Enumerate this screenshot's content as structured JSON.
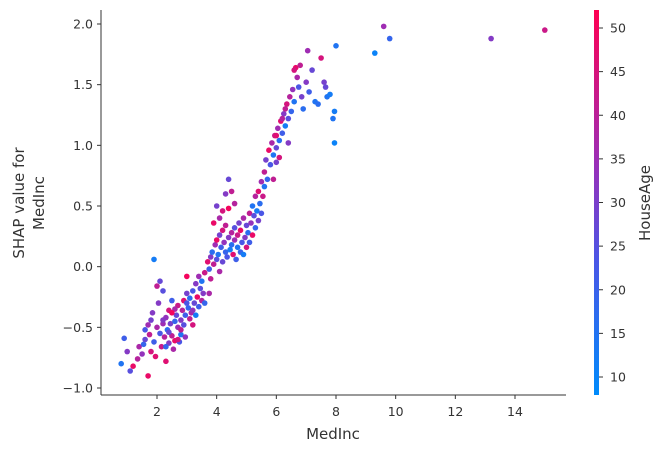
{
  "chart_data": {
    "type": "scatter",
    "title": "",
    "xlabel": "MedInc",
    "ylabel": "SHAP value for\nMedInc",
    "ylabel_lines": [
      "SHAP value for",
      "MedInc"
    ],
    "xlim": [
      0.2,
      15.8
    ],
    "ylim": [
      -1.1,
      2.12
    ],
    "x_ticks": [
      2,
      4,
      6,
      8,
      10,
      12,
      14
    ],
    "x_tick_labels": [
      "2",
      "4",
      "6",
      "8",
      "10",
      "12",
      "14"
    ],
    "y_ticks": [
      -1.0,
      -0.5,
      0.0,
      0.5,
      1.0,
      1.5,
      2.0
    ],
    "y_tick_labels": [
      "−1.0",
      "−0.5",
      "0.0",
      "0.5",
      "1.0",
      "1.5",
      "2.0"
    ],
    "grid": false,
    "colorbar": {
      "label": "HouseAge",
      "range": [
        8,
        52
      ],
      "ticks": [
        10,
        15,
        20,
        25,
        30,
        35,
        40,
        45,
        50
      ],
      "tick_labels": [
        "10",
        "15",
        "20",
        "25",
        "30",
        "35",
        "40",
        "45",
        "50"
      ],
      "colormap": [
        "#008bfb",
        "#5b4fe0",
        "#9f2fb4",
        "#ff0052"
      ],
      "low_color": "#008bfb",
      "high_color": "#ff0052"
    },
    "points": [
      [
        0.8,
        -0.8,
        14
      ],
      [
        0.9,
        -0.59,
        20
      ],
      [
        1.0,
        -0.7,
        30
      ],
      [
        1.1,
        -0.86,
        24
      ],
      [
        1.2,
        -0.82,
        48
      ],
      [
        1.35,
        -0.76,
        38
      ],
      [
        1.4,
        -0.66,
        36
      ],
      [
        1.5,
        -0.72,
        32
      ],
      [
        1.55,
        -0.64,
        18
      ],
      [
        1.6,
        -0.6,
        26
      ],
      [
        1.6,
        -0.52,
        22
      ],
      [
        1.7,
        -0.9,
        48
      ],
      [
        1.7,
        -0.48,
        34
      ],
      [
        1.75,
        -0.56,
        40
      ],
      [
        1.8,
        -0.44,
        28
      ],
      [
        1.8,
        -0.7,
        44
      ],
      [
        1.85,
        -0.38,
        30
      ],
      [
        1.9,
        -0.62,
        20
      ],
      [
        1.9,
        0.06,
        12
      ],
      [
        1.95,
        -0.74,
        46
      ],
      [
        2.0,
        -0.16,
        40
      ],
      [
        2.0,
        -0.5,
        36
      ],
      [
        2.05,
        -0.3,
        30
      ],
      [
        2.1,
        -0.55,
        22
      ],
      [
        2.1,
        -0.12,
        26
      ],
      [
        2.15,
        -0.66,
        42
      ],
      [
        2.2,
        -0.47,
        34
      ],
      [
        2.2,
        -0.2,
        24
      ],
      [
        2.25,
        -0.58,
        38
      ],
      [
        2.3,
        -0.42,
        32
      ],
      [
        2.3,
        -0.78,
        46
      ],
      [
        2.35,
        -0.52,
        16
      ],
      [
        2.4,
        -0.63,
        30
      ],
      [
        2.4,
        -0.36,
        44
      ],
      [
        2.45,
        -0.47,
        28
      ],
      [
        2.5,
        -0.57,
        40
      ],
      [
        2.5,
        -0.28,
        20
      ],
      [
        2.55,
        -0.68,
        36
      ],
      [
        2.6,
        -0.45,
        18
      ],
      [
        2.6,
        -0.61,
        48
      ],
      [
        2.65,
        -0.4,
        26
      ],
      [
        2.7,
        -0.5,
        34
      ],
      [
        2.7,
        -0.32,
        42
      ],
      [
        2.75,
        -0.62,
        22
      ],
      [
        2.8,
        -0.44,
        30
      ],
      [
        2.8,
        -0.56,
        14
      ],
      [
        2.85,
        -0.36,
        38
      ],
      [
        2.9,
        -0.48,
        24
      ],
      [
        2.9,
        -0.28,
        46
      ],
      [
        2.95,
        -0.4,
        20
      ],
      [
        2.95,
        -0.58,
        32
      ],
      [
        3.0,
        -0.22,
        28
      ],
      [
        3.0,
        -0.08,
        50
      ],
      [
        3.05,
        -0.34,
        18
      ],
      [
        3.1,
        -0.43,
        40
      ],
      [
        3.1,
        -0.26,
        16
      ],
      [
        3.15,
        -0.38,
        36
      ],
      [
        3.2,
        -0.2,
        22
      ],
      [
        3.2,
        -0.48,
        44
      ],
      [
        3.25,
        -0.3,
        26
      ],
      [
        3.3,
        -0.14,
        30
      ],
      [
        3.3,
        -0.4,
        12
      ],
      [
        3.35,
        -0.25,
        48
      ],
      [
        3.4,
        -0.33,
        20
      ],
      [
        3.4,
        -0.08,
        34
      ],
      [
        3.45,
        -0.18,
        24
      ],
      [
        3.5,
        -0.28,
        38
      ],
      [
        3.5,
        -0.12,
        14
      ],
      [
        3.55,
        -0.22,
        30
      ],
      [
        3.6,
        -0.3,
        18
      ],
      [
        3.6,
        -0.05,
        42
      ],
      [
        2.2,
        -0.44,
        30
      ],
      [
        2.4,
        -0.54,
        26
      ],
      [
        2.6,
        -0.35,
        36
      ],
      [
        2.8,
        -0.52,
        40
      ],
      [
        3.0,
        -0.3,
        22
      ],
      [
        3.2,
        -0.36,
        32
      ],
      [
        2.3,
        -0.66,
        18
      ],
      [
        2.7,
        -0.6,
        44
      ],
      [
        2.5,
        -0.38,
        50
      ],
      [
        3.7,
        0.04,
        46
      ],
      [
        3.75,
        -0.02,
        20
      ],
      [
        3.8,
        0.08,
        30
      ],
      [
        3.85,
        0.12,
        16
      ],
      [
        3.9,
        0.02,
        40
      ],
      [
        3.95,
        0.18,
        34
      ],
      [
        4.0,
        0.06,
        24
      ],
      [
        4.0,
        0.22,
        48
      ],
      [
        4.05,
        0.1,
        14
      ],
      [
        4.1,
        0.26,
        28
      ],
      [
        4.1,
        -0.04,
        36
      ],
      [
        4.15,
        0.16,
        20
      ],
      [
        4.2,
        0.3,
        44
      ],
      [
        4.2,
        0.04,
        26
      ],
      [
        4.25,
        0.2,
        32
      ],
      [
        4.3,
        0.12,
        18
      ],
      [
        4.3,
        0.34,
        40
      ],
      [
        4.35,
        0.08,
        22
      ],
      [
        4.4,
        0.24,
        30
      ],
      [
        4.4,
        0.48,
        50
      ],
      [
        4.45,
        0.14,
        12
      ],
      [
        4.5,
        0.28,
        38
      ],
      [
        4.5,
        0.18,
        16
      ],
      [
        4.55,
        0.1,
        46
      ],
      [
        4.6,
        0.32,
        24
      ],
      [
        4.6,
        0.22,
        34
      ],
      [
        4.65,
        0.06,
        20
      ],
      [
        4.7,
        0.26,
        42
      ],
      [
        4.7,
        0.16,
        14
      ],
      [
        4.75,
        0.36,
        28
      ],
      [
        4.8,
        0.12,
        18
      ],
      [
        4.8,
        0.3,
        48
      ],
      [
        4.85,
        0.2,
        22
      ],
      [
        4.9,
        0.4,
        36
      ],
      [
        4.9,
        0.1,
        12
      ],
      [
        4.95,
        0.24,
        30
      ],
      [
        5.0,
        0.34,
        26
      ],
      [
        5.0,
        0.16,
        44
      ],
      [
        5.05,
        0.28,
        16
      ],
      [
        5.1,
        0.44,
        40
      ],
      [
        5.1,
        0.2,
        20
      ],
      [
        5.15,
        0.36,
        32
      ],
      [
        5.2,
        0.5,
        14
      ],
      [
        5.2,
        0.26,
        48
      ],
      [
        5.25,
        0.42,
        24
      ],
      [
        5.3,
        0.32,
        18
      ],
      [
        5.3,
        0.58,
        38
      ],
      [
        5.35,
        0.46,
        12
      ],
      [
        5.4,
        0.38,
        28
      ],
      [
        5.4,
        0.62,
        46
      ],
      [
        5.45,
        0.52,
        16
      ],
      [
        5.5,
        0.7,
        34
      ],
      [
        5.5,
        0.44,
        22
      ],
      [
        5.55,
        0.58,
        42
      ],
      [
        5.6,
        0.66,
        14
      ],
      [
        4.3,
        0.6,
        30
      ],
      [
        4.2,
        0.46,
        44
      ],
      [
        4.1,
        0.4,
        36
      ],
      [
        3.9,
        0.36,
        48
      ],
      [
        4.0,
        0.5,
        28
      ],
      [
        3.8,
        -0.1,
        40
      ],
      [
        3.75,
        -0.22,
        36
      ],
      [
        4.6,
        0.52,
        38
      ],
      [
        4.5,
        0.62,
        40
      ],
      [
        4.4,
        0.72,
        26
      ],
      [
        5.6,
        0.78,
        40
      ],
      [
        5.65,
        0.88,
        28
      ],
      [
        5.7,
        0.72,
        18
      ],
      [
        5.75,
        0.96,
        48
      ],
      [
        5.8,
        0.84,
        22
      ],
      [
        5.85,
        1.02,
        36
      ],
      [
        5.9,
        0.92,
        14
      ],
      [
        5.95,
        1.08,
        42
      ],
      [
        6.0,
        0.98,
        26
      ],
      [
        6.05,
        1.14,
        34
      ],
      [
        6.1,
        1.04,
        16
      ],
      [
        6.15,
        1.2,
        46
      ],
      [
        6.2,
        1.1,
        20
      ],
      [
        6.25,
        1.26,
        30
      ],
      [
        6.3,
        1.16,
        12
      ],
      [
        6.35,
        1.34,
        44
      ],
      [
        6.4,
        1.22,
        24
      ],
      [
        6.45,
        1.4,
        38
      ],
      [
        6.5,
        1.28,
        18
      ],
      [
        6.55,
        1.46,
        32
      ],
      [
        6.6,
        1.36,
        14
      ],
      [
        6.65,
        1.64,
        48
      ],
      [
        6.7,
        1.56,
        36
      ],
      [
        6.75,
        1.48,
        22
      ],
      [
        6.8,
        1.66,
        40
      ],
      [
        6.85,
        1.4,
        28
      ],
      [
        6.9,
        1.3,
        16
      ],
      [
        7.0,
        1.52,
        30
      ],
      [
        7.05,
        1.78,
        34
      ],
      [
        7.1,
        1.44,
        20
      ],
      [
        7.2,
        1.62,
        26
      ],
      [
        7.3,
        1.36,
        14
      ],
      [
        7.4,
        1.34,
        16
      ],
      [
        7.5,
        1.72,
        44
      ],
      [
        7.6,
        1.52,
        28
      ],
      [
        7.65,
        1.48,
        26
      ],
      [
        7.7,
        1.4,
        14
      ],
      [
        7.8,
        1.42,
        12
      ],
      [
        7.9,
        1.22,
        14
      ],
      [
        7.95,
        1.28,
        12
      ],
      [
        7.95,
        1.02,
        10
      ],
      [
        8.0,
        1.82,
        14
      ],
      [
        6.2,
        1.22,
        38
      ],
      [
        6.4,
        1.02,
        30
      ],
      [
        6.1,
        0.9,
        44
      ],
      [
        5.9,
        0.72,
        40
      ],
      [
        6.0,
        0.86,
        28
      ],
      [
        6.3,
        1.3,
        40
      ],
      [
        6.6,
        1.62,
        44
      ],
      [
        6.0,
        1.08,
        46
      ],
      [
        9.3,
        1.76,
        10
      ],
      [
        9.6,
        1.98,
        34
      ],
      [
        9.8,
        1.88,
        18
      ],
      [
        13.2,
        1.88,
        30
      ],
      [
        15.0,
        1.95,
        42
      ]
    ]
  }
}
